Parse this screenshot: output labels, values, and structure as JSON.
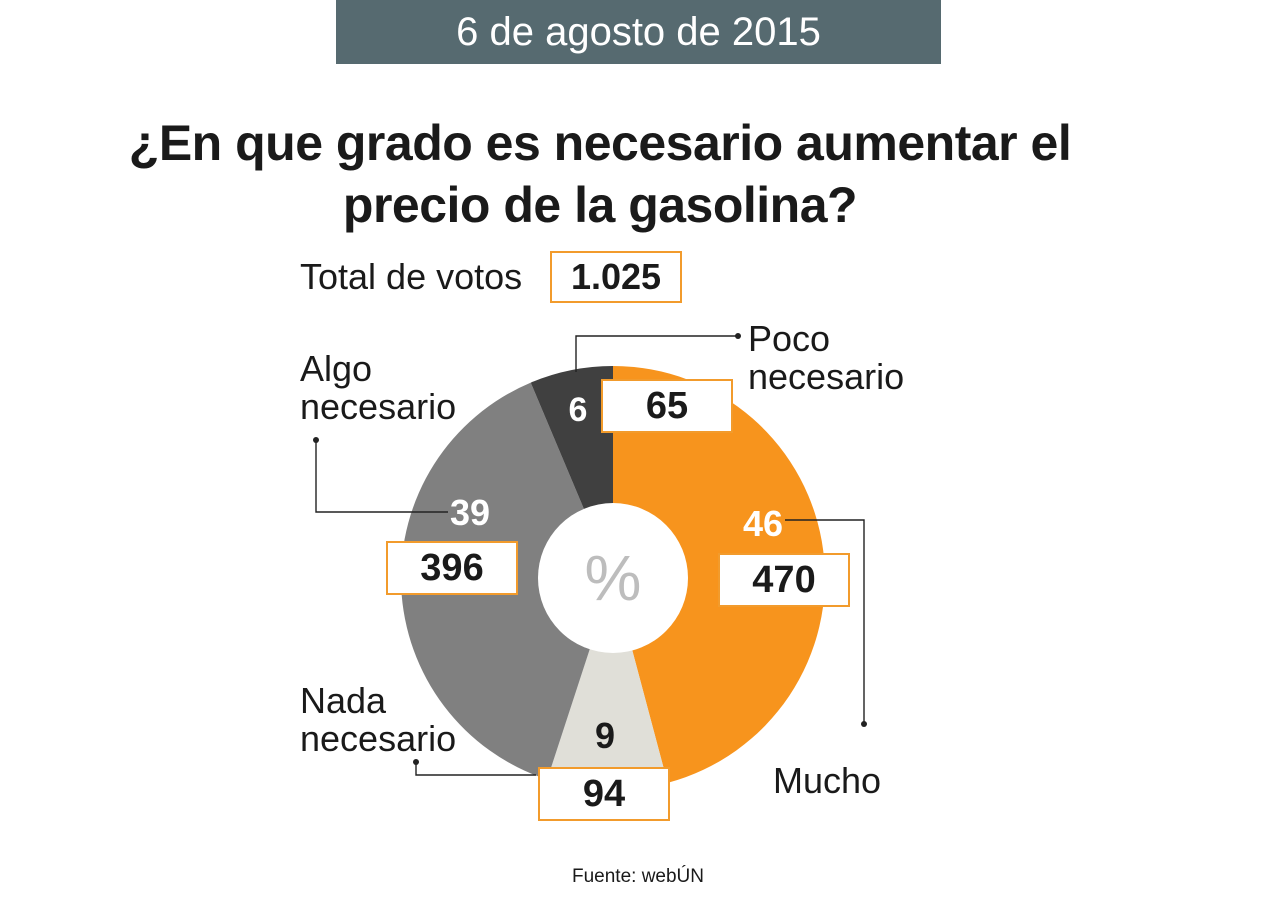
{
  "header": {
    "date": "6 de agosto de 2015"
  },
  "title": "¿En que grado es necesario aumentar el precio de la gasolina?",
  "total": {
    "label": "Total de votos",
    "value": "1.025"
  },
  "center_symbol": "%",
  "source": "Fuente: webÚN",
  "colors": {
    "mucho": "#f7941d",
    "nada": "#e0dfd8",
    "algo": "#808080",
    "poco": "#404040",
    "box_border": "#f29b2c",
    "banner": "#566a70"
  },
  "chart_data": {
    "type": "pie",
    "title": "¿En que grado es necesario aumentar el precio de la gasolina?",
    "unit": "%",
    "total_votes": 1025,
    "slices": [
      {
        "label": "Mucho",
        "percent": 46,
        "votes": 470,
        "color": "#f7941d"
      },
      {
        "label": "Nada necesario",
        "percent": 9,
        "votes": 94,
        "color": "#e0dfd8"
      },
      {
        "label": "Algo necesario",
        "percent": 39,
        "votes": 396,
        "color": "#808080"
      },
      {
        "label": "Poco necesario",
        "percent": 6,
        "votes": 65,
        "color": "#404040"
      }
    ]
  }
}
